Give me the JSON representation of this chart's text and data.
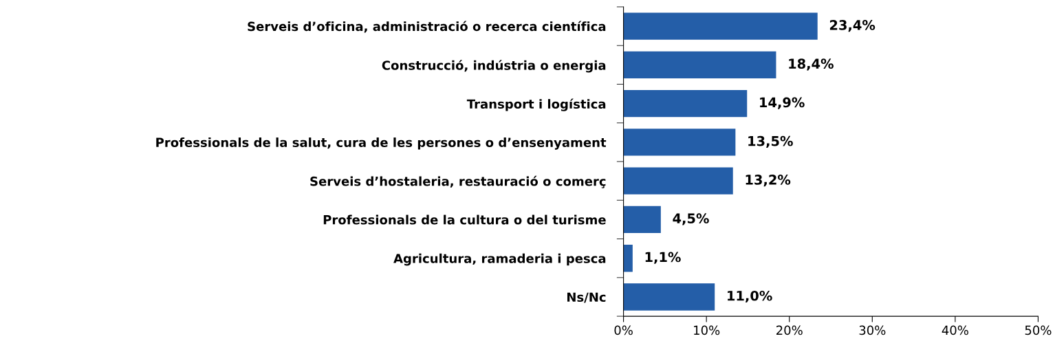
{
  "chart_data": {
    "type": "bar",
    "orientation": "horizontal",
    "categories": [
      "Serveis d’oficina, administració o recerca científica",
      "Construcció, indústria o energia",
      "Transport i logística",
      "Professionals de la salut, cura de les persones o d’ensenyament",
      "Serveis d’hostaleria, restauració o comerç",
      "Professionals de la cultura o del turisme",
      "Agricultura, ramaderia i pesca",
      "Ns/Nc"
    ],
    "values": [
      23.4,
      18.4,
      14.9,
      13.5,
      13.2,
      4.5,
      1.1,
      11.0
    ],
    "value_labels": [
      "23,4%",
      "18,4%",
      "14,9%",
      "13,5%",
      "13,2%",
      "4,5%",
      "1,1%",
      "11,0%"
    ],
    "color": "#245ea8",
    "xlim": [
      0,
      50
    ],
    "xticks": [
      {
        "value": 0,
        "label": "0%"
      },
      {
        "value": 10,
        "label": "10%"
      },
      {
        "value": 20,
        "label": "20%"
      },
      {
        "value": 30,
        "label": "30%"
      },
      {
        "value": 40,
        "label": "40%"
      },
      {
        "value": 50,
        "label": "50%"
      }
    ],
    "grid": false,
    "legend": false
  }
}
